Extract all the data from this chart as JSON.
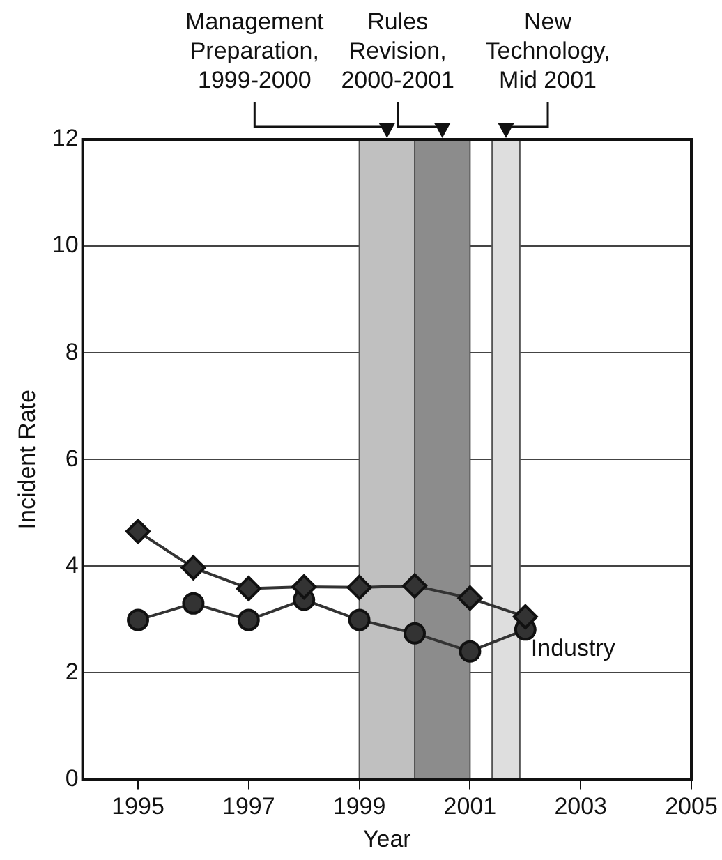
{
  "chart_data": {
    "type": "line",
    "xlabel": "Year",
    "ylabel": "Incident Rate",
    "x": [
      1995,
      1996,
      1997,
      1998,
      1999,
      2000,
      2001,
      2002
    ],
    "series": [
      {
        "color": "#333333",
        "marker": "diamond",
        "values": [
          4.65,
          3.97,
          3.58,
          3.61,
          3.6,
          3.63,
          3.4,
          3.05
        ]
      },
      {
        "name": "Industry",
        "color": "#333333",
        "marker": "circle",
        "values": [
          2.99,
          3.3,
          2.99,
          3.37,
          2.99,
          2.74,
          2.4,
          2.81
        ]
      }
    ],
    "xlim": [
      1994,
      2005
    ],
    "xticks": [
      1995,
      1997,
      1999,
      2001,
      2003,
      2005
    ],
    "ylim": [
      0,
      12
    ],
    "yticks": [
      0,
      2,
      4,
      6,
      8,
      10,
      12
    ],
    "grid": "y",
    "legend": false,
    "bands": [
      {
        "axis": "x",
        "from": 1999,
        "to": 2000,
        "label": "Management\nPreparation,\n1999-2000",
        "color": "#c0c0c0"
      },
      {
        "axis": "x",
        "from": 2000,
        "to": 2001,
        "label": "Rules\nRevision,\n2000-2001",
        "color": "#8c8c8c"
      },
      {
        "axis": "x",
        "from": 2001.4,
        "to": 2001.9,
        "label": "New\nTechnology,\nMid 2001",
        "color": "#dedede"
      }
    ]
  }
}
